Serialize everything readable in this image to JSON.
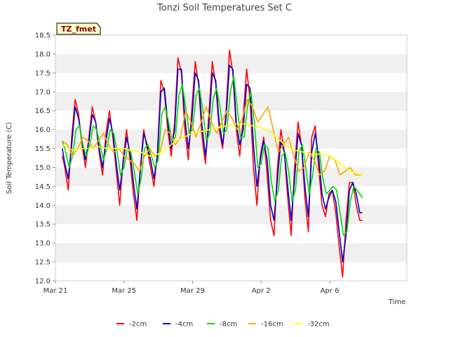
{
  "chart_data": {
    "type": "line",
    "title": "Tonzi Soil Temperatures Set C",
    "xlabel": "Time",
    "ylabel": "Soil Temperature (C)",
    "badge": "TZ_fmet",
    "ylim": [
      12.0,
      18.5
    ],
    "y_ticks": [
      "12.0",
      "12.5",
      "13.0",
      "13.5",
      "14.0",
      "14.5",
      "15.0",
      "15.5",
      "16.0",
      "16.5",
      "17.0",
      "17.5",
      "18.0",
      "18.5"
    ],
    "x_range_days": [
      0,
      20.5
    ],
    "x_ticks": [
      {
        "label": "Mar 21",
        "day": 0
      },
      {
        "label": "Mar 25",
        "day": 4
      },
      {
        "label": "Mar 29",
        "day": 8
      },
      {
        "label": "Apr 2",
        "day": 12
      },
      {
        "label": "Apr 6",
        "day": 16
      }
    ],
    "x_day_zero": "Mar 21",
    "grid": "horizontal bands",
    "legend_position": "bottom",
    "series": [
      {
        "name": "-2cm",
        "color": "#ff0000",
        "x": [
          0.4,
          0.55,
          0.75,
          0.95,
          1.15,
          1.35,
          1.55,
          1.75,
          1.95,
          2.15,
          2.35,
          2.55,
          2.75,
          2.95,
          3.15,
          3.35,
          3.55,
          3.75,
          3.95,
          4.15,
          4.35,
          4.55,
          4.75,
          4.95,
          5.15,
          5.35,
          5.55,
          5.75,
          5.95,
          6.15,
          6.35,
          6.55,
          6.75,
          6.95,
          7.15,
          7.35,
          7.55,
          7.75,
          7.95,
          8.15,
          8.35,
          8.55,
          8.75,
          8.95,
          9.15,
          9.35,
          9.55,
          9.75,
          9.95,
          10.15,
          10.35,
          10.55,
          10.75,
          10.95,
          11.15,
          11.35,
          11.55,
          11.75,
          11.95,
          12.15,
          12.35,
          12.55,
          12.75,
          12.95,
          13.15,
          13.35,
          13.55,
          13.75,
          13.95,
          14.15,
          14.35,
          14.55,
          14.75,
          14.95,
          15.15,
          15.35,
          15.55,
          15.75,
          15.95,
          16.15,
          16.35,
          16.55,
          16.75,
          16.95,
          17.15,
          17.35,
          17.55,
          17.75,
          17.9
        ],
        "values": [
          15.3,
          15.0,
          14.4,
          15.8,
          16.8,
          16.4,
          15.6,
          15.0,
          15.8,
          16.6,
          16.2,
          15.4,
          14.8,
          15.9,
          16.5,
          15.8,
          14.9,
          14.0,
          15.2,
          16.0,
          15.2,
          14.3,
          13.6,
          15.0,
          16.0,
          15.5,
          15.0,
          14.5,
          15.4,
          17.3,
          17.0,
          16.0,
          15.3,
          16.2,
          17.9,
          17.5,
          16.0,
          15.2,
          16.5,
          17.8,
          17.2,
          15.8,
          15.1,
          16.4,
          17.8,
          17.2,
          16.0,
          15.5,
          16.5,
          18.1,
          17.5,
          16.0,
          15.3,
          16.3,
          17.6,
          16.8,
          15.0,
          14.0,
          15.3,
          15.8,
          14.8,
          13.6,
          13.2,
          15.0,
          16.0,
          15.4,
          14.2,
          13.2,
          15.0,
          16.2,
          15.6,
          14.2,
          13.3,
          15.8,
          16.1,
          15.0,
          14.0,
          13.7,
          14.3,
          14.4,
          13.8,
          12.9,
          12.1,
          13.6,
          14.6,
          14.6,
          14.0,
          13.6,
          13.6
        ]
      },
      {
        "name": "-4cm",
        "color": "#0000cc",
        "x": [
          0.4,
          0.55,
          0.75,
          0.95,
          1.15,
          1.35,
          1.55,
          1.75,
          1.95,
          2.15,
          2.35,
          2.55,
          2.75,
          2.95,
          3.15,
          3.35,
          3.55,
          3.75,
          3.95,
          4.15,
          4.35,
          4.55,
          4.75,
          4.95,
          5.15,
          5.35,
          5.55,
          5.75,
          5.95,
          6.15,
          6.35,
          6.55,
          6.75,
          6.95,
          7.15,
          7.35,
          7.55,
          7.75,
          7.95,
          8.15,
          8.35,
          8.55,
          8.75,
          8.95,
          9.15,
          9.35,
          9.55,
          9.75,
          9.95,
          10.15,
          10.35,
          10.55,
          10.75,
          10.95,
          11.15,
          11.35,
          11.55,
          11.75,
          11.95,
          12.15,
          12.35,
          12.55,
          12.75,
          12.95,
          13.15,
          13.35,
          13.55,
          13.75,
          13.95,
          14.15,
          14.35,
          14.55,
          14.75,
          14.95,
          15.15,
          15.35,
          15.55,
          15.75,
          15.95,
          16.15,
          16.35,
          16.55,
          16.75,
          16.95,
          17.15,
          17.35,
          17.55,
          17.75,
          17.9
        ],
        "values": [
          15.5,
          15.1,
          14.7,
          15.6,
          16.6,
          16.3,
          15.7,
          15.2,
          15.7,
          16.4,
          16.2,
          15.5,
          15.0,
          15.7,
          16.3,
          15.9,
          15.1,
          14.4,
          15.1,
          15.8,
          15.4,
          14.6,
          13.9,
          14.9,
          15.9,
          15.6,
          15.2,
          14.7,
          15.3,
          17.0,
          17.1,
          16.2,
          15.5,
          16.0,
          17.6,
          17.6,
          16.3,
          15.5,
          16.2,
          17.5,
          17.3,
          16.1,
          15.3,
          16.1,
          17.5,
          17.3,
          16.2,
          15.6,
          16.3,
          17.7,
          17.6,
          16.2,
          15.6,
          16.0,
          17.2,
          17.1,
          15.6,
          14.5,
          15.2,
          15.7,
          15.2,
          14.0,
          13.6,
          14.7,
          15.7,
          15.4,
          14.5,
          13.6,
          14.7,
          15.9,
          15.6,
          14.5,
          13.7,
          15.4,
          15.9,
          15.3,
          14.3,
          13.9,
          14.2,
          14.4,
          14.1,
          13.3,
          12.5,
          13.2,
          14.4,
          14.6,
          14.3,
          13.8,
          13.8
        ]
      },
      {
        "name": "-8cm",
        "color": "#00dd00",
        "x": [
          0.4,
          0.6,
          0.8,
          1.0,
          1.2,
          1.4,
          1.6,
          1.8,
          2.0,
          2.2,
          2.4,
          2.6,
          2.8,
          3.0,
          3.2,
          3.4,
          3.6,
          3.8,
          4.0,
          4.2,
          4.4,
          4.6,
          4.8,
          5.0,
          5.2,
          5.4,
          5.6,
          5.8,
          6.0,
          6.2,
          6.4,
          6.6,
          6.8,
          7.0,
          7.2,
          7.4,
          7.6,
          7.8,
          8.0,
          8.2,
          8.4,
          8.6,
          8.8,
          9.0,
          9.2,
          9.4,
          9.6,
          9.8,
          10.0,
          10.2,
          10.4,
          10.6,
          10.8,
          11.0,
          11.2,
          11.4,
          11.6,
          11.8,
          12.0,
          12.2,
          12.4,
          12.6,
          12.8,
          13.0,
          13.2,
          13.4,
          13.6,
          13.8,
          14.0,
          14.2,
          14.4,
          14.6,
          14.8,
          15.0,
          15.2,
          15.4,
          15.6,
          15.8,
          16.0,
          16.2,
          16.4,
          16.6,
          16.8,
          17.0,
          17.2,
          17.4,
          17.6,
          17.9
        ],
        "values": [
          15.7,
          15.4,
          15.0,
          15.3,
          16.0,
          16.1,
          15.6,
          15.3,
          15.6,
          16.1,
          16.0,
          15.6,
          15.2,
          15.5,
          16.0,
          15.9,
          15.4,
          14.8,
          15.0,
          15.5,
          15.4,
          14.9,
          14.3,
          14.7,
          15.5,
          15.6,
          15.3,
          15.0,
          15.2,
          16.4,
          16.6,
          16.2,
          15.7,
          15.8,
          16.9,
          17.2,
          16.6,
          15.9,
          16.0,
          16.9,
          17.1,
          16.5,
          15.7,
          15.9,
          16.8,
          17.1,
          16.6,
          15.9,
          16.0,
          17.0,
          17.4,
          16.6,
          15.8,
          15.8,
          16.6,
          17.0,
          16.2,
          15.0,
          15.1,
          15.6,
          15.5,
          14.6,
          14.1,
          14.4,
          15.3,
          15.4,
          14.9,
          14.1,
          14.4,
          15.4,
          15.6,
          15.0,
          14.3,
          14.8,
          15.5,
          15.4,
          14.7,
          14.3,
          14.4,
          14.5,
          14.4,
          13.8,
          13.2,
          13.3,
          14.1,
          14.5,
          14.4,
          14.2
        ]
      },
      {
        "name": "-16cm",
        "color": "#ffa500",
        "x": [
          0.4,
          0.7,
          1.0,
          1.3,
          1.6,
          1.9,
          2.2,
          2.5,
          2.8,
          3.1,
          3.4,
          3.7,
          4.0,
          4.3,
          4.6,
          4.9,
          5.2,
          5.5,
          5.8,
          6.1,
          6.4,
          6.7,
          7.0,
          7.3,
          7.6,
          7.9,
          8.2,
          8.5,
          8.8,
          9.1,
          9.4,
          9.7,
          10.0,
          10.3,
          10.6,
          10.9,
          11.2,
          11.5,
          11.8,
          12.1,
          12.4,
          12.7,
          13.0,
          13.3,
          13.6,
          13.9,
          14.2,
          14.5,
          14.8,
          15.1,
          15.4,
          15.7,
          16.0,
          16.3,
          16.6,
          16.9,
          17.2,
          17.5,
          17.9
        ],
        "values": [
          15.7,
          15.6,
          15.3,
          15.5,
          15.8,
          15.7,
          15.5,
          15.7,
          15.9,
          15.6,
          15.4,
          15.5,
          15.3,
          15.2,
          15.1,
          14.9,
          15.3,
          15.5,
          15.3,
          15.4,
          16.0,
          15.9,
          15.6,
          15.8,
          16.5,
          16.2,
          15.8,
          16.2,
          16.6,
          16.2,
          15.9,
          16.2,
          16.5,
          16.3,
          16.0,
          16.3,
          16.8,
          16.6,
          16.2,
          16.4,
          16.6,
          16.0,
          15.4,
          15.6,
          15.8,
          15.3,
          14.9,
          15.0,
          15.4,
          15.2,
          14.8,
          14.9,
          15.3,
          15.2,
          14.8,
          14.9,
          15.0,
          14.8,
          14.8
        ]
      },
      {
        "name": "-32cm",
        "color": "#ffff00",
        "x": [
          0.4,
          1.0,
          1.5,
          2.0,
          2.5,
          3.0,
          3.5,
          4.0,
          4.5,
          5.0,
          5.5,
          6.0,
          6.5,
          7.0,
          7.5,
          8.0,
          8.5,
          9.0,
          9.5,
          10.0,
          10.5,
          11.0,
          11.5,
          12.0,
          12.5,
          13.0,
          13.5,
          14.0,
          14.5,
          15.0,
          15.5,
          16.0,
          16.5,
          17.0,
          17.5,
          17.9
        ],
        "values": [
          15.6,
          15.45,
          15.5,
          15.5,
          15.55,
          15.5,
          15.5,
          15.5,
          15.45,
          15.4,
          15.3,
          15.35,
          15.5,
          15.7,
          15.8,
          15.9,
          15.95,
          16.0,
          16.05,
          16.1,
          16.15,
          16.15,
          16.1,
          16.05,
          15.95,
          15.75,
          15.55,
          15.45,
          15.4,
          15.35,
          15.35,
          15.3,
          15.15,
          14.95,
          14.85,
          14.8
        ]
      }
    ]
  }
}
